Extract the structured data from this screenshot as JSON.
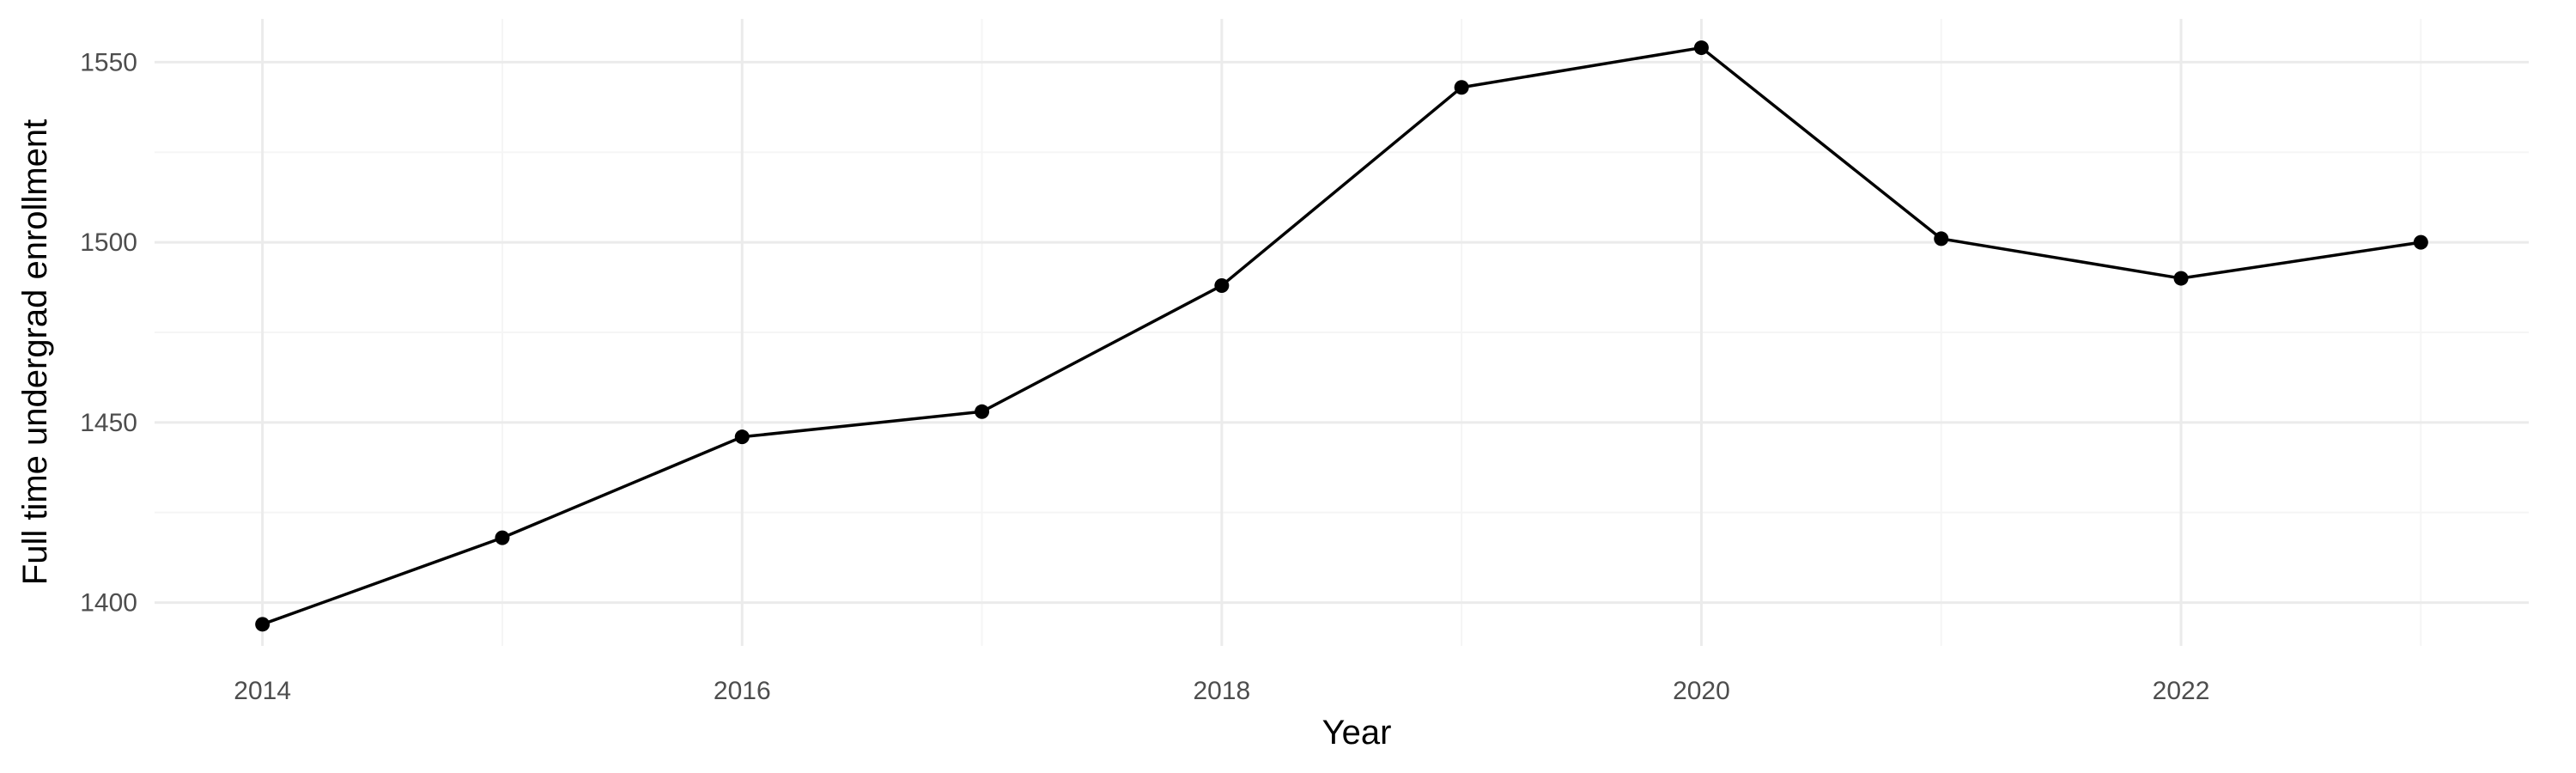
{
  "chart_data": {
    "type": "line",
    "title": "",
    "xlabel": "Year",
    "ylabel": "Full time undergrad enrollment",
    "x": [
      2014,
      2015,
      2016,
      2017,
      2018,
      2019,
      2020,
      2021,
      2022,
      2023
    ],
    "series": [
      {
        "values": [
          1394,
          1418,
          1446,
          1453,
          1488,
          1543,
          1554,
          1501,
          1490,
          1500
        ]
      }
    ],
    "xlim": [
      2013.55,
      2023.45
    ],
    "ylim": [
      1388,
      1562
    ],
    "x_ticks": [
      2014,
      2016,
      2018,
      2020,
      2022
    ],
    "y_ticks": [
      1400,
      1450,
      1500,
      1550
    ],
    "grid": true,
    "colors": {
      "line": "#000000",
      "point": "#000000",
      "grid_major": "#ebebeb",
      "grid_minor": "#f5f5f5"
    }
  }
}
